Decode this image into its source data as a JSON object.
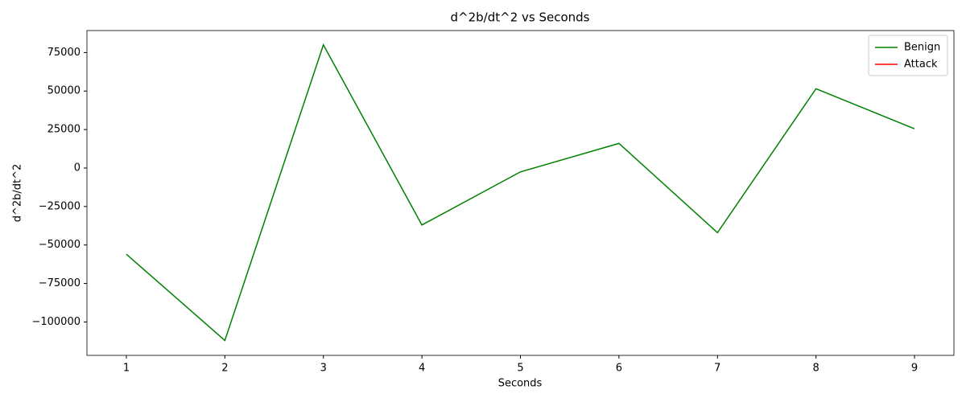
{
  "chart_data": {
    "type": "line",
    "title": "d^2b/dt^2 vs Seconds",
    "xlabel": "Seconds",
    "ylabel": "d^2b/dt^2",
    "x": [
      1,
      2,
      3,
      4,
      5,
      6,
      7,
      8,
      9
    ],
    "series": [
      {
        "name": "Benign",
        "color": "#008000",
        "values": [
          -56000,
          -112000,
          80000,
          -37000,
          -2500,
          16000,
          -42000,
          51500,
          25500
        ]
      },
      {
        "name": "Attack",
        "color": "#ff0000",
        "values": [
          null,
          null,
          null,
          null,
          null,
          null,
          null,
          null,
          null
        ]
      }
    ],
    "xlim": [
      0.6,
      9.4
    ],
    "xticks": [
      1,
      2,
      3,
      4,
      5,
      6,
      7,
      8,
      9
    ],
    "ylim": [
      -121700,
      89300
    ],
    "yticks": [
      {
        "value": -100000,
        "label": "−100000"
      },
      {
        "value": -75000,
        "label": "−75000"
      },
      {
        "value": -50000,
        "label": "−50000"
      },
      {
        "value": -25000,
        "label": "−25000"
      },
      0,
      25000,
      50000,
      75000
    ],
    "grid": false,
    "legend": "upper right"
  }
}
